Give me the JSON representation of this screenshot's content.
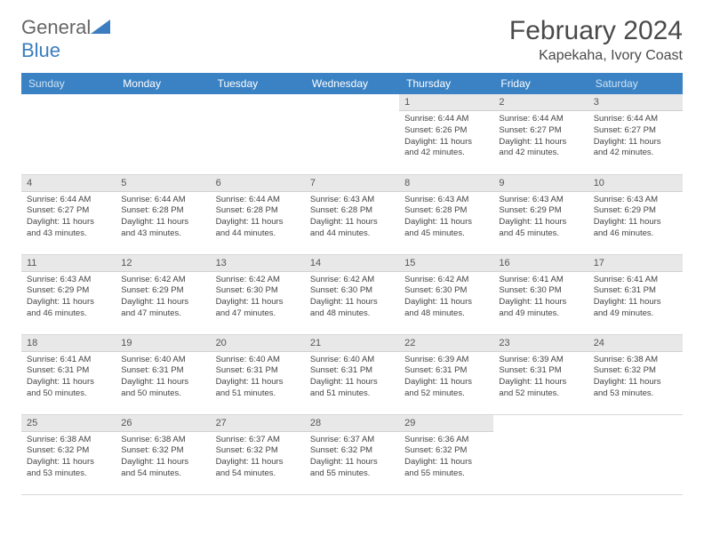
{
  "logo": {
    "main": "General",
    "accent": "Blue"
  },
  "title": "February 2024",
  "subtitle": "Kapekaha, Ivory Coast",
  "colors": {
    "header_bg": "#3b82c4",
    "header_fg": "#ffffff",
    "weekend_fg": "#cfe3f2",
    "daynum_bg": "#e8e8e8",
    "grid_border": "#d8d8d8",
    "text": "#444444",
    "logo_accent": "#3b7dbf"
  },
  "typography": {
    "title_fontsize": 30,
    "subtitle_fontsize": 16,
    "header_fontsize": 12,
    "daynum_fontsize": 11,
    "body_fontsize": 9.5
  },
  "layout": {
    "columns": 7,
    "rows": 5
  },
  "weekdays": [
    "Sunday",
    "Monday",
    "Tuesday",
    "Wednesday",
    "Thursday",
    "Friday",
    "Saturday"
  ],
  "days": [
    {
      "n": "",
      "sr": "",
      "ss": "",
      "dl": ""
    },
    {
      "n": "",
      "sr": "",
      "ss": "",
      "dl": ""
    },
    {
      "n": "",
      "sr": "",
      "ss": "",
      "dl": ""
    },
    {
      "n": "",
      "sr": "",
      "ss": "",
      "dl": ""
    },
    {
      "n": "1",
      "sr": "Sunrise: 6:44 AM",
      "ss": "Sunset: 6:26 PM",
      "dl": "Daylight: 11 hours and 42 minutes."
    },
    {
      "n": "2",
      "sr": "Sunrise: 6:44 AM",
      "ss": "Sunset: 6:27 PM",
      "dl": "Daylight: 11 hours and 42 minutes."
    },
    {
      "n": "3",
      "sr": "Sunrise: 6:44 AM",
      "ss": "Sunset: 6:27 PM",
      "dl": "Daylight: 11 hours and 42 minutes."
    },
    {
      "n": "4",
      "sr": "Sunrise: 6:44 AM",
      "ss": "Sunset: 6:27 PM",
      "dl": "Daylight: 11 hours and 43 minutes."
    },
    {
      "n": "5",
      "sr": "Sunrise: 6:44 AM",
      "ss": "Sunset: 6:28 PM",
      "dl": "Daylight: 11 hours and 43 minutes."
    },
    {
      "n": "6",
      "sr": "Sunrise: 6:44 AM",
      "ss": "Sunset: 6:28 PM",
      "dl": "Daylight: 11 hours and 44 minutes."
    },
    {
      "n": "7",
      "sr": "Sunrise: 6:43 AM",
      "ss": "Sunset: 6:28 PM",
      "dl": "Daylight: 11 hours and 44 minutes."
    },
    {
      "n": "8",
      "sr": "Sunrise: 6:43 AM",
      "ss": "Sunset: 6:28 PM",
      "dl": "Daylight: 11 hours and 45 minutes."
    },
    {
      "n": "9",
      "sr": "Sunrise: 6:43 AM",
      "ss": "Sunset: 6:29 PM",
      "dl": "Daylight: 11 hours and 45 minutes."
    },
    {
      "n": "10",
      "sr": "Sunrise: 6:43 AM",
      "ss": "Sunset: 6:29 PM",
      "dl": "Daylight: 11 hours and 46 minutes."
    },
    {
      "n": "11",
      "sr": "Sunrise: 6:43 AM",
      "ss": "Sunset: 6:29 PM",
      "dl": "Daylight: 11 hours and 46 minutes."
    },
    {
      "n": "12",
      "sr": "Sunrise: 6:42 AM",
      "ss": "Sunset: 6:29 PM",
      "dl": "Daylight: 11 hours and 47 minutes."
    },
    {
      "n": "13",
      "sr": "Sunrise: 6:42 AM",
      "ss": "Sunset: 6:30 PM",
      "dl": "Daylight: 11 hours and 47 minutes."
    },
    {
      "n": "14",
      "sr": "Sunrise: 6:42 AM",
      "ss": "Sunset: 6:30 PM",
      "dl": "Daylight: 11 hours and 48 minutes."
    },
    {
      "n": "15",
      "sr": "Sunrise: 6:42 AM",
      "ss": "Sunset: 6:30 PM",
      "dl": "Daylight: 11 hours and 48 minutes."
    },
    {
      "n": "16",
      "sr": "Sunrise: 6:41 AM",
      "ss": "Sunset: 6:30 PM",
      "dl": "Daylight: 11 hours and 49 minutes."
    },
    {
      "n": "17",
      "sr": "Sunrise: 6:41 AM",
      "ss": "Sunset: 6:31 PM",
      "dl": "Daylight: 11 hours and 49 minutes."
    },
    {
      "n": "18",
      "sr": "Sunrise: 6:41 AM",
      "ss": "Sunset: 6:31 PM",
      "dl": "Daylight: 11 hours and 50 minutes."
    },
    {
      "n": "19",
      "sr": "Sunrise: 6:40 AM",
      "ss": "Sunset: 6:31 PM",
      "dl": "Daylight: 11 hours and 50 minutes."
    },
    {
      "n": "20",
      "sr": "Sunrise: 6:40 AM",
      "ss": "Sunset: 6:31 PM",
      "dl": "Daylight: 11 hours and 51 minutes."
    },
    {
      "n": "21",
      "sr": "Sunrise: 6:40 AM",
      "ss": "Sunset: 6:31 PM",
      "dl": "Daylight: 11 hours and 51 minutes."
    },
    {
      "n": "22",
      "sr": "Sunrise: 6:39 AM",
      "ss": "Sunset: 6:31 PM",
      "dl": "Daylight: 11 hours and 52 minutes."
    },
    {
      "n": "23",
      "sr": "Sunrise: 6:39 AM",
      "ss": "Sunset: 6:31 PM",
      "dl": "Daylight: 11 hours and 52 minutes."
    },
    {
      "n": "24",
      "sr": "Sunrise: 6:38 AM",
      "ss": "Sunset: 6:32 PM",
      "dl": "Daylight: 11 hours and 53 minutes."
    },
    {
      "n": "25",
      "sr": "Sunrise: 6:38 AM",
      "ss": "Sunset: 6:32 PM",
      "dl": "Daylight: 11 hours and 53 minutes."
    },
    {
      "n": "26",
      "sr": "Sunrise: 6:38 AM",
      "ss": "Sunset: 6:32 PM",
      "dl": "Daylight: 11 hours and 54 minutes."
    },
    {
      "n": "27",
      "sr": "Sunrise: 6:37 AM",
      "ss": "Sunset: 6:32 PM",
      "dl": "Daylight: 11 hours and 54 minutes."
    },
    {
      "n": "28",
      "sr": "Sunrise: 6:37 AM",
      "ss": "Sunset: 6:32 PM",
      "dl": "Daylight: 11 hours and 55 minutes."
    },
    {
      "n": "29",
      "sr": "Sunrise: 6:36 AM",
      "ss": "Sunset: 6:32 PM",
      "dl": "Daylight: 11 hours and 55 minutes."
    },
    {
      "n": "",
      "sr": "",
      "ss": "",
      "dl": ""
    },
    {
      "n": "",
      "sr": "",
      "ss": "",
      "dl": ""
    }
  ]
}
